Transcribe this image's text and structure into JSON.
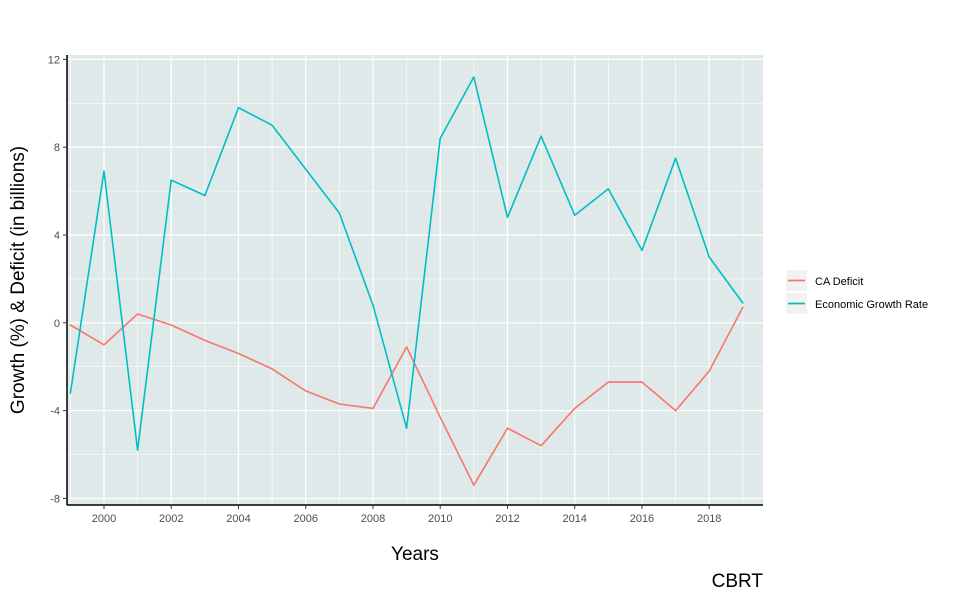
{
  "chart_data": {
    "type": "line",
    "xlabel": "Years",
    "ylabel": "Growth (%) & Deficit (in billions)",
    "caption": "CBRT",
    "xlim": [
      1998.9,
      2019.6
    ],
    "ylim": [
      -8.3,
      12.2
    ],
    "x_ticks": [
      2000,
      2002,
      2004,
      2006,
      2008,
      2010,
      2012,
      2014,
      2016,
      2018
    ],
    "x_tick_labels": [
      "2000",
      "2002",
      "2004",
      "2006",
      "2008",
      "2010",
      "2012",
      "2014",
      "2016",
      "2018"
    ],
    "y_ticks": [
      -8,
      -4,
      0,
      4,
      8,
      12
    ],
    "y_tick_labels": [
      "-8",
      "-4",
      "0",
      "4",
      "8",
      "12"
    ],
    "grid": true,
    "legend_position": "right",
    "x": [
      1999,
      2000,
      2001,
      2002,
      2003,
      2004,
      2005,
      2006,
      2007,
      2008,
      2009,
      2010,
      2011,
      2012,
      2013,
      2014,
      2015,
      2016,
      2017,
      2018,
      2019
    ],
    "series": [
      {
        "name": "CA Deficit",
        "color": "#F8766D",
        "values": [
          -0.1,
          -1.0,
          0.4,
          -0.1,
          -0.8,
          -1.4,
          -2.1,
          -3.1,
          -3.7,
          -3.9,
          -1.1,
          -4.3,
          -7.4,
          -4.8,
          -5.6,
          -3.9,
          -2.7,
          -2.7,
          -4.0,
          -2.2,
          0.7
        ]
      },
      {
        "name": "Economic Growth Rate",
        "color": "#00BFC4",
        "values": [
          -3.2,
          6.9,
          -5.8,
          6.5,
          5.8,
          9.8,
          9.0,
          7.0,
          5.0,
          0.8,
          -4.8,
          8.4,
          11.2,
          4.8,
          8.5,
          4.9,
          6.1,
          3.3,
          7.5,
          3.0,
          0.9
        ]
      }
    ]
  }
}
